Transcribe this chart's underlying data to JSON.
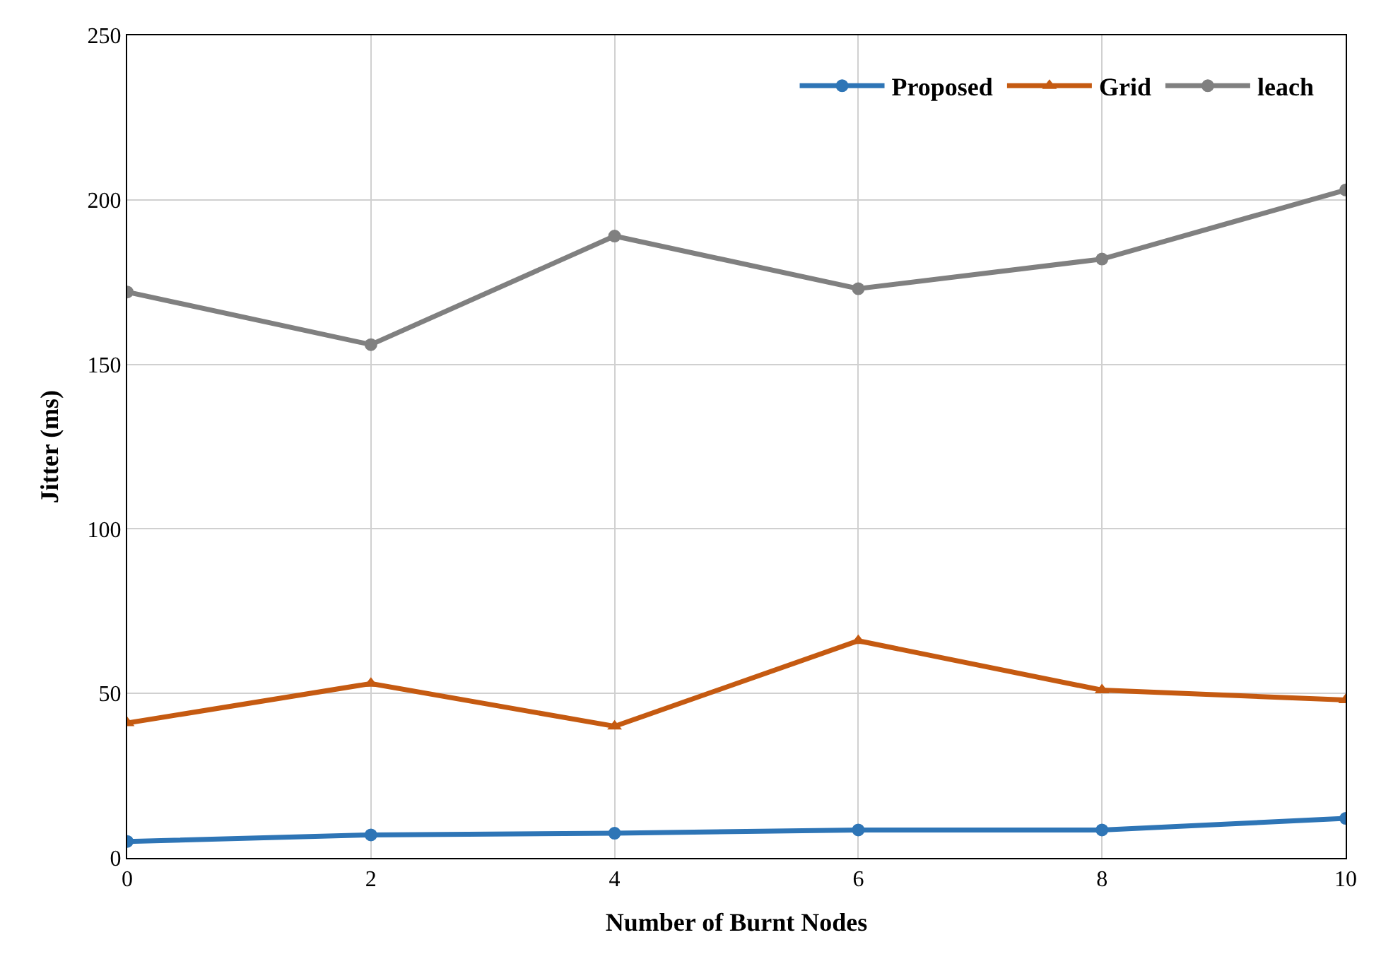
{
  "chart_data": {
    "type": "line",
    "xlabel": "Number of Burnt Nodes",
    "ylabel": "Jitter (ms)",
    "x": [
      0,
      2,
      4,
      6,
      8,
      10
    ],
    "series": [
      {
        "name": "Proposed",
        "color": "#2e75b6",
        "marker": "circle",
        "values": [
          5,
          7,
          7.5,
          8.5,
          8.5,
          12
        ]
      },
      {
        "name": "Grid",
        "color": "#c55a11",
        "marker": "triangle",
        "values": [
          41,
          53,
          40,
          66,
          51,
          48
        ]
      },
      {
        "name": "leach",
        "color": "#808080",
        "marker": "circle",
        "values": [
          172,
          156,
          189,
          173,
          182,
          203
        ]
      }
    ],
    "xlim": [
      0,
      10
    ],
    "xticks": [
      0,
      2,
      4,
      6,
      8,
      10
    ],
    "ylim": [
      0,
      250
    ],
    "yticks": [
      0,
      50,
      100,
      150,
      200,
      250
    ],
    "grid": true,
    "legend": "top right",
    "line_style": "solid"
  }
}
